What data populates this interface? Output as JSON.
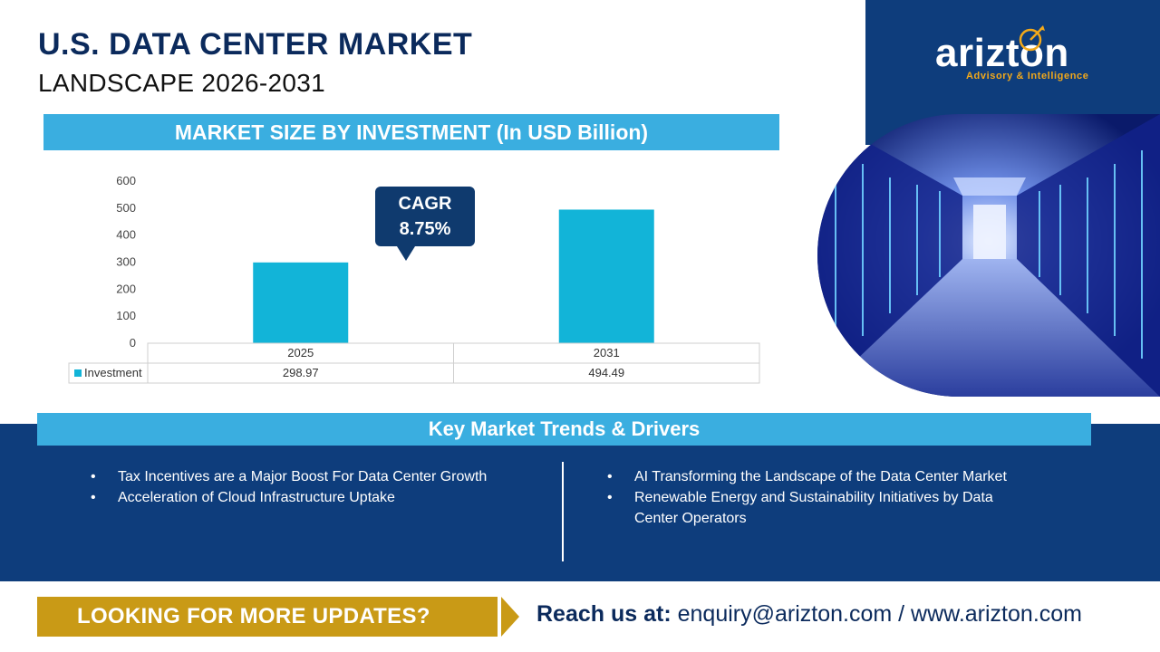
{
  "header": {
    "title": "U.S. DATA CENTER MARKET",
    "subtitle": "LANDSCAPE 2026-2031"
  },
  "brand": {
    "logo_pre": "arizt",
    "logo_o": "o",
    "logo_post": "n",
    "tagline": "Advisory & Intelligence",
    "photo_icon": "server-room-photo"
  },
  "chart_data": {
    "type": "bar",
    "title": "MARKET SIZE BY INVESTMENT (In USD Billion)",
    "categories": [
      "2025",
      "2031"
    ],
    "series": [
      {
        "name": "Investment",
        "values": [
          298.97,
          494.49
        ],
        "value_labels": [
          "298.97",
          "494.49"
        ]
      }
    ],
    "ylim": [
      0,
      600
    ],
    "yticks": [
      "0",
      "100",
      "200",
      "300",
      "400",
      "500",
      "600"
    ],
    "grid": false,
    "data_table": true,
    "bar_color": "#12b4d8",
    "annotation": {
      "line1": "CAGR",
      "line2": "8.75%"
    }
  },
  "trends": {
    "title": "Key Market Trends & Drivers",
    "left": [
      "Tax Incentives are a Major Boost For Data Center Growth",
      "Acceleration of Cloud Infrastructure Uptake"
    ],
    "right": [
      "AI Transforming the Landscape of the Data Center Market",
      "Renewable Energy and Sustainability Initiatives by Data Center Operators"
    ]
  },
  "footer": {
    "cta": "LOOKING FOR MORE UPDATES?",
    "reach_label": "Reach us at:",
    "contact": "enquiry@arizton.com / www.arizton.com"
  },
  "colors": {
    "navy": "#0e3d7c",
    "sky": "#3aaee0",
    "gold": "#c99a16",
    "bar": "#12b4d8"
  }
}
